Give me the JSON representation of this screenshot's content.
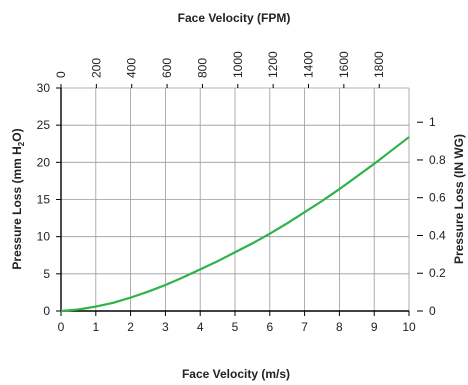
{
  "chart_data": {
    "type": "line",
    "title_top": "Face Velocity (FPM)",
    "xlabel": "Face Velocity (m/s)",
    "ylabel_left_parts": [
      "Pressure Loss (mm H",
      "2",
      "O)"
    ],
    "ylabel_right": "Pressure Loss (IN WG)",
    "xlim": [
      0,
      10
    ],
    "ylim": [
      0,
      30
    ],
    "x_ticks": [
      0,
      1,
      2,
      3,
      4,
      5,
      6,
      7,
      8,
      9,
      10
    ],
    "y_ticks": [
      0,
      5,
      10,
      15,
      20,
      25,
      30
    ],
    "x_top_ticks": [
      0,
      200,
      400,
      600,
      800,
      1000,
      1200,
      1400,
      1600,
      1800
    ],
    "y_right_ticks": [
      "0",
      "0.2",
      "0.4",
      "0.6",
      "0.8",
      "1"
    ],
    "y_right_values_mmH2O_per_inWG": 25.4,
    "x_top_fpm_per_ms": 196.85,
    "series": [
      {
        "color": "#2db34a",
        "x": [
          0,
          0.5,
          1,
          1.5,
          2,
          2.5,
          3,
          3.5,
          4,
          4.5,
          5,
          5.5,
          6,
          6.5,
          7,
          7.5,
          8,
          8.5,
          9,
          9.5,
          10
        ],
        "y": [
          0,
          0.2,
          0.6,
          1.1,
          1.8,
          2.6,
          3.5,
          4.5,
          5.6,
          6.7,
          7.9,
          9.1,
          10.4,
          11.8,
          13.3,
          14.8,
          16.4,
          18.1,
          19.8,
          21.6,
          23.4
        ]
      }
    ],
    "grid": true
  }
}
